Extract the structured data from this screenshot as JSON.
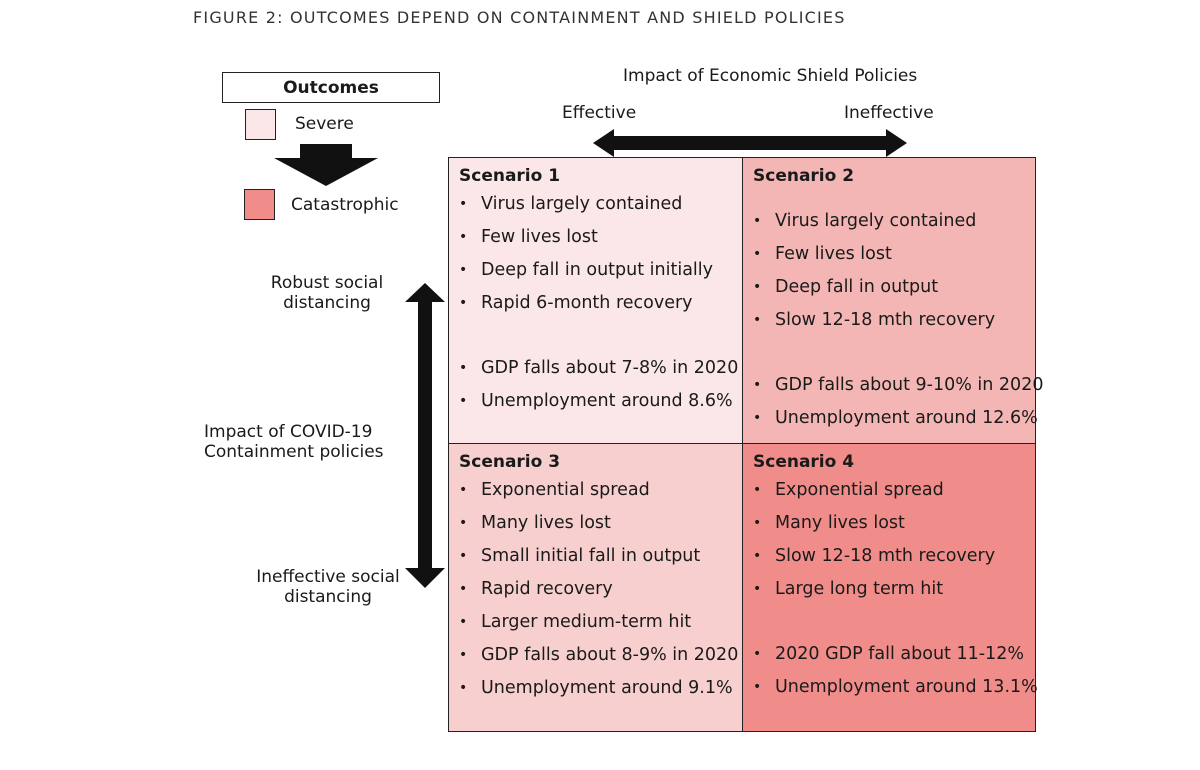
{
  "figure_title": "FIGURE 2: OUTCOMES DEPEND ON CONTAINMENT AND SHIELD POLICIES",
  "legend": {
    "title": "Outcomes",
    "severe": {
      "label": "Severe",
      "color": "#fbe7e7"
    },
    "catastrophic": {
      "label": "Catastrophic",
      "color": "#f08d8a"
    },
    "arrow_icon": "down-arrow-icon"
  },
  "horizontal_axis": {
    "title": "Impact of Economic Shield Policies",
    "left_label": "Effective",
    "right_label": "Ineffective"
  },
  "vertical_axis": {
    "title_line1": "Impact of COVID-19",
    "title_line2": "Containment policies",
    "top_label_line1": "Robust social",
    "top_label_line2": "distancing",
    "bottom_label_line1": "Ineffective social",
    "bottom_label_line2": "distancing"
  },
  "scenarios": [
    {
      "title": "Scenario 1",
      "color": "#fbe7e7",
      "bullets": [
        "Virus largely contained",
        "Few lives lost",
        "Deep fall in output initially",
        "Rapid 6-month recovery"
      ],
      "stats": [
        "GDP falls about 7-8% in 2020",
        "Unemployment around 8.6%"
      ]
    },
    {
      "title": "Scenario 2",
      "color": "#f4b6b4",
      "bullets": [
        "Virus largely contained",
        "Few lives lost",
        "Deep fall in output",
        "Slow 12-18 mth recovery"
      ],
      "stats": [
        "GDP falls about 9-10% in 2020",
        "Unemployment around 12.6%"
      ]
    },
    {
      "title": "Scenario 3",
      "color": "#f6cfce",
      "bullets": [
        "Exponential spread",
        "Many lives lost",
        "Small initial fall in output",
        "Rapid recovery",
        "Larger medium-term hit"
      ],
      "stats": [
        "GDP falls about 8-9% in 2020",
        "Unemployment around 9.1%"
      ]
    },
    {
      "title": "Scenario 4",
      "color": "#f08d8a",
      "bullets": [
        "Exponential spread",
        "Many lives lost",
        "Slow 12-18 mth recovery",
        "Large long term hit"
      ],
      "stats": [
        "2020 GDP fall about 11-12%",
        "Unemployment around 13.1%"
      ]
    }
  ]
}
